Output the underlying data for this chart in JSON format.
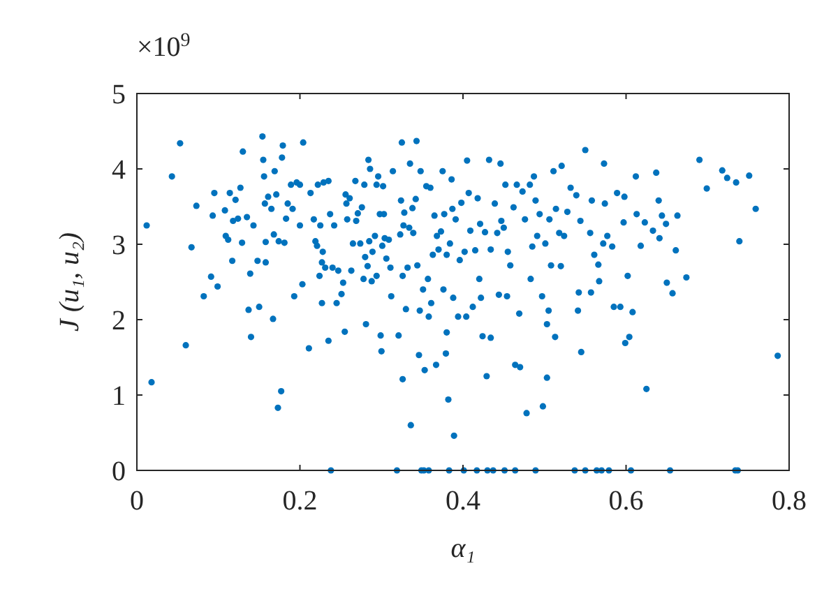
{
  "chart_data": {
    "type": "scatter",
    "xlabel": "α₁",
    "ylabel": "J (u₁, u₂)",
    "annotations": [
      "×10$^{9}$"
    ],
    "xlim": [
      0,
      0.8
    ],
    "xticks": [
      0,
      0.2,
      0.4,
      0.6,
      0.8
    ],
    "ylim": [
      0,
      5
    ],
    "yticks": [
      0,
      1,
      2,
      3,
      4,
      5
    ],
    "grid": false,
    "marker": "circle",
    "series": [
      {
        "color": "#0072bd",
        "x": [
          0.012,
          0.018,
          0.043,
          0.053,
          0.06,
          0.067,
          0.073,
          0.082,
          0.091,
          0.093,
          0.095,
          0.099,
          0.108,
          0.109,
          0.112,
          0.114,
          0.117,
          0.118,
          0.121,
          0.124,
          0.127,
          0.129,
          0.13,
          0.135,
          0.137,
          0.139,
          0.14,
          0.143,
          0.148,
          0.15,
          0.154,
          0.155,
          0.156,
          0.157,
          0.158,
          0.158,
          0.161,
          0.165,
          0.167,
          0.168,
          0.169,
          0.171,
          0.173,
          0.174,
          0.177,
          0.178,
          0.179,
          0.181,
          0.183,
          0.185,
          0.189,
          0.191,
          0.193,
          0.196,
          0.2,
          0.2,
          0.203,
          0.204,
          0.211,
          0.213,
          0.217,
          0.219,
          0.221,
          0.222,
          0.224,
          0.225,
          0.227,
          0.227,
          0.228,
          0.229,
          0.231,
          0.235,
          0.235,
          0.237,
          0.238,
          0.24,
          0.242,
          0.245,
          0.247,
          0.251,
          0.253,
          0.255,
          0.256,
          0.257,
          0.258,
          0.261,
          0.263,
          0.265,
          0.268,
          0.269,
          0.271,
          0.274,
          0.276,
          0.278,
          0.279,
          0.28,
          0.281,
          0.283,
          0.284,
          0.285,
          0.286,
          0.288,
          0.289,
          0.292,
          0.294,
          0.294,
          0.296,
          0.298,
          0.299,
          0.3,
          0.301,
          0.302,
          0.303,
          0.304,
          0.306,
          0.309,
          0.311,
          0.312,
          0.314,
          0.319,
          0.321,
          0.323,
          0.324,
          0.325,
          0.326,
          0.326,
          0.327,
          0.328,
          0.33,
          0.332,
          0.334,
          0.335,
          0.336,
          0.338,
          0.339,
          0.342,
          0.343,
          0.344,
          0.346,
          0.347,
          0.348,
          0.349,
          0.351,
          0.352,
          0.353,
          0.355,
          0.357,
          0.358,
          0.358,
          0.36,
          0.361,
          0.363,
          0.365,
          0.367,
          0.368,
          0.37,
          0.373,
          0.375,
          0.376,
          0.377,
          0.379,
          0.38,
          0.38,
          0.382,
          0.383,
          0.384,
          0.386,
          0.387,
          0.388,
          0.389,
          0.391,
          0.394,
          0.396,
          0.398,
          0.401,
          0.402,
          0.404,
          0.405,
          0.407,
          0.409,
          0.412,
          0.415,
          0.417,
          0.418,
          0.42,
          0.421,
          0.422,
          0.424,
          0.427,
          0.429,
          0.43,
          0.432,
          0.434,
          0.434,
          0.437,
          0.439,
          0.442,
          0.444,
          0.446,
          0.447,
          0.45,
          0.451,
          0.452,
          0.454,
          0.455,
          0.458,
          0.462,
          0.464,
          0.464,
          0.466,
          0.469,
          0.47,
          0.473,
          0.476,
          0.478,
          0.482,
          0.483,
          0.485,
          0.487,
          0.489,
          0.489,
          0.491,
          0.494,
          0.497,
          0.498,
          0.501,
          0.503,
          0.503,
          0.505,
          0.506,
          0.508,
          0.511,
          0.513,
          0.514,
          0.518,
          0.52,
          0.521,
          0.524,
          0.528,
          0.532,
          0.537,
          0.539,
          0.541,
          0.542,
          0.544,
          0.545,
          0.55,
          0.55,
          0.556,
          0.557,
          0.558,
          0.561,
          0.564,
          0.566,
          0.567,
          0.57,
          0.572,
          0.573,
          0.574,
          0.577,
          0.579,
          0.583,
          0.585,
          0.589,
          0.593,
          0.597,
          0.598,
          0.599,
          0.602,
          0.604,
          0.606,
          0.608,
          0.612,
          0.613,
          0.618,
          0.623,
          0.625,
          0.633,
          0.637,
          0.64,
          0.641,
          0.644,
          0.649,
          0.65,
          0.654,
          0.657,
          0.661,
          0.663,
          0.674,
          0.69,
          0.699,
          0.718,
          0.724,
          0.734,
          0.737,
          0.735,
          0.739,
          0.751,
          0.759,
          0.786
        ],
        "values": [
          3.25,
          1.17,
          3.9,
          4.34,
          1.66,
          2.96,
          3.51,
          2.31,
          2.57,
          3.38,
          3.68,
          2.44,
          3.45,
          3.11,
          3.06,
          3.68,
          2.78,
          3.31,
          3.59,
          3.34,
          3.75,
          3.02,
          4.23,
          3.36,
          2.13,
          2.61,
          1.77,
          3.25,
          2.78,
          2.17,
          4.43,
          4.12,
          3.9,
          3.54,
          3.03,
          2.76,
          3.63,
          3.47,
          2.01,
          3.13,
          3.97,
          3.66,
          0.83,
          3.04,
          1.05,
          4.15,
          4.31,
          3.02,
          3.34,
          3.54,
          3.79,
          3.47,
          2.31,
          3.82,
          3.79,
          3.25,
          2.47,
          4.35,
          1.62,
          3.68,
          3.33,
          3.04,
          2.98,
          3.79,
          2.58,
          3.25,
          2.22,
          2.76,
          2.9,
          3.82,
          2.69,
          3.84,
          1.72,
          3.4,
          0,
          2.69,
          3.25,
          2.22,
          2.65,
          2.34,
          2.49,
          1.84,
          3.66,
          3.54,
          3.33,
          3.61,
          2.65,
          3.01,
          3.84,
          3.31,
          3.41,
          3.01,
          3.49,
          2.54,
          3.79,
          2.83,
          1.94,
          2.71,
          4.12,
          3.04,
          4.0,
          2.51,
          2.9,
          3.11,
          3.79,
          2.58,
          3.9,
          3.4,
          1.79,
          1.58,
          2.98,
          3.77,
          3.4,
          3.08,
          2.81,
          3.06,
          2.69,
          2.31,
          3.97,
          0,
          1.79,
          3.13,
          3.58,
          4.35,
          2.58,
          1.21,
          3.25,
          3.42,
          2.14,
          2.69,
          3.22,
          4.07,
          0.6,
          3.48,
          3.15,
          3.6,
          4.37,
          2.72,
          1.53,
          2.12,
          3.97,
          0,
          2.4,
          0,
          1.33,
          3.77,
          2.54,
          2.04,
          0,
          3.75,
          2.22,
          2.86,
          3.38,
          1.4,
          3.11,
          2.93,
          3.17,
          3.97,
          2.4,
          3.4,
          1.55,
          2.86,
          1.83,
          0.94,
          0,
          3.01,
          3.86,
          3.47,
          2.29,
          0.46,
          3.33,
          2.04,
          2.79,
          3.55,
          0,
          2.9,
          2.04,
          4.11,
          3.68,
          3.18,
          2.17,
          2.92,
          0,
          3.61,
          2.54,
          3.27,
          2.29,
          1.78,
          3.16,
          1.25,
          0,
          4.12,
          1.76,
          2.93,
          0,
          3.54,
          3.15,
          2.33,
          4.07,
          3.31,
          3.22,
          0,
          3.79,
          2.31,
          2.9,
          2.72,
          3.49,
          0,
          1.4,
          3.79,
          2.08,
          1.37,
          3.7,
          3.33,
          0.76,
          3.79,
          2.54,
          2.97,
          3.9,
          0,
          3.58,
          3.11,
          3.4,
          2.31,
          0.85,
          3.01,
          1.94,
          1.23,
          2.12,
          3.33,
          2.72,
          3.97,
          1.77,
          3.47,
          3.15,
          2.71,
          4.04,
          3.11,
          3.43,
          3.75,
          0,
          3.65,
          2.12,
          2.36,
          3.31,
          1.57,
          4.25,
          0,
          3.15,
          2.36,
          3.58,
          2.86,
          0,
          2.73,
          2.51,
          0,
          3.01,
          4.07,
          3.54,
          3.11,
          0,
          2.97,
          2.17,
          3.68,
          2.17,
          3.29,
          3.63,
          1.69,
          2.58,
          1.77,
          0,
          2.1,
          3.9,
          3.4,
          2.98,
          3.29,
          1.08,
          3.18,
          3.95,
          3.58,
          3.08,
          3.38,
          3.27,
          2.49,
          0,
          2.35,
          2.92,
          3.38,
          2.56,
          4.12,
          3.74,
          3.98,
          3.88,
          0,
          0,
          3.82,
          3.04,
          3.91,
          3.47,
          1.52
        ]
      }
    ]
  }
}
